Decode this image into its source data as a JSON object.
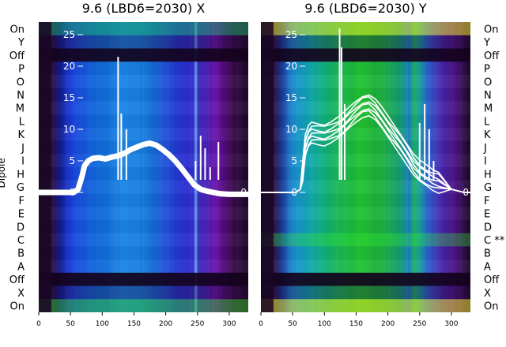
{
  "chart_data": [
    {
      "type": "heatmap",
      "title": "9.6 (LBD6=2030) X",
      "ylabel": "Dipole",
      "xlim": [
        0,
        330
      ],
      "x_ticks": [
        0,
        50,
        100,
        150,
        200,
        250,
        300
      ],
      "ylim": [
        -19,
        27
      ],
      "y_ticks": [
        0,
        5,
        10,
        15,
        20,
        25
      ],
      "row_labels": [
        "On",
        "Y",
        "Off",
        "P",
        "O",
        "N",
        "M",
        "L",
        "K",
        "J",
        "I",
        "H",
        "G",
        "F",
        "E",
        "D",
        "C",
        "B",
        "A",
        "Off",
        "X",
        "On"
      ],
      "row_label_side": "left",
      "overlay_series": [
        {
          "style": "thick-white-band",
          "x": [
            0,
            55,
            62,
            68,
            72,
            78,
            85,
            95,
            105,
            115,
            125,
            135,
            145,
            155,
            165,
            175,
            185,
            195,
            205,
            215,
            225,
            235,
            245,
            255,
            265,
            275,
            285,
            300,
            330
          ],
          "y": [
            0,
            0,
            0.5,
            2.5,
            4.2,
            5.0,
            5.4,
            5.5,
            5.3,
            5.6,
            5.8,
            6.2,
            6.8,
            7.2,
            7.6,
            7.8,
            7.5,
            6.8,
            6.0,
            5.0,
            3.8,
            2.5,
            1.2,
            0.5,
            0.2,
            0.0,
            -0.2,
            -0.3,
            -0.3
          ],
          "spikes": [
            [
              125,
              21.5
            ],
            [
              130,
              12.5
            ],
            [
              138,
              10
            ],
            [
              247,
              5
            ],
            [
              255,
              9
            ],
            [
              262,
              7
            ],
            [
              270,
              4
            ],
            [
              283,
              8
            ]
          ]
        }
      ]
    },
    {
      "type": "heatmap",
      "title": "9.6 (LBD6=2030) Y",
      "xlim": [
        0,
        330
      ],
      "x_ticks": [
        0,
        50,
        100,
        150,
        200,
        250,
        300
      ],
      "ylim": [
        -19,
        27
      ],
      "y_ticks": [
        0,
        5,
        10,
        15,
        20,
        25
      ],
      "row_labels": [
        "On",
        "Y",
        "Off",
        "P",
        "O",
        "N",
        "M",
        "L",
        "K",
        "J",
        "I",
        "H",
        "G",
        "F",
        "E",
        "D",
        "C **",
        "B",
        "A",
        "Off",
        "X",
        "On"
      ],
      "row_label_side": "right",
      "overlay_series": [
        {
          "style": "thin-white-lines",
          "x": [
            0,
            55,
            62,
            66,
            70,
            75,
            80,
            90,
            100,
            110,
            120,
            130,
            140,
            150,
            160,
            170,
            180,
            190,
            200,
            210,
            220,
            230,
            240,
            250,
            260,
            270,
            280,
            300,
            320,
            330
          ],
          "y": [
            0,
            0,
            0.5,
            3.5,
            7.5,
            9.0,
            9.5,
            9.2,
            9.0,
            9.5,
            10.2,
            11.0,
            12.0,
            12.8,
            13.5,
            13.8,
            13.2,
            12.0,
            10.5,
            9.0,
            7.5,
            6.0,
            4.5,
            3.5,
            2.8,
            2.0,
            1.5,
            0.5,
            0.0,
            0.0
          ],
          "spikes": [
            [
              124,
              26
            ],
            [
              127,
              23
            ],
            [
              132,
              14
            ],
            [
              250,
              11
            ],
            [
              258,
              14
            ],
            [
              265,
              10
            ],
            [
              272,
              5
            ]
          ]
        }
      ]
    }
  ]
}
